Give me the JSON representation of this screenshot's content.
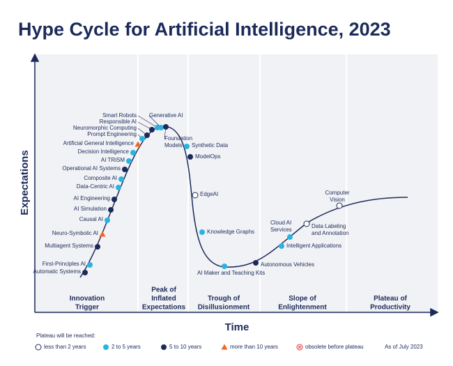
{
  "title": "Hype Cycle for Artificial Intelligence, 2023",
  "y_axis": "Expectations",
  "x_axis": "Time",
  "phases": [
    {
      "lines": [
        "Innovation",
        "Trigger"
      ]
    },
    {
      "lines": [
        "Peak of",
        "Inflated",
        "Expectations"
      ]
    },
    {
      "lines": [
        "Trough of",
        "Disillusionment"
      ]
    },
    {
      "lines": [
        "Slope of",
        "Enlightenment"
      ]
    },
    {
      "lines": [
        "Plateau of",
        "Productivity"
      ]
    }
  ],
  "legend_title": "Plateau will be reached:",
  "legend": [
    {
      "label": "less than 2 years",
      "items": [
        {
          "label": [
            "EdgeAI"
          ]
        },
        {
          "label": [
            "Data Labeling",
            "and Annotation"
          ]
        },
        {
          "label": [
            "Computer",
            "Vision"
          ]
        }
      ]
    },
    {
      "label": "2 to 5 years",
      "items": [
        {
          "label": [
            "First-Principles AI"
          ]
        },
        {
          "label": [
            "Causal AI"
          ]
        },
        {
          "label": [
            "Data-Centric AI"
          ]
        },
        {
          "label": [
            "Composite AI"
          ]
        },
        {
          "label": [
            "AI TRiSM"
          ]
        },
        {
          "label": [
            "Decision Intelligence"
          ]
        },
        {
          "label": [
            "Prompt Engineering"
          ]
        },
        {
          "label": [
            "Smart Robots"
          ]
        },
        {
          "label": [
            "Generative AI"
          ]
        },
        {
          "label": [
            "Synthetic Data"
          ]
        },
        {
          "label": [
            "Knowledge Graphs"
          ]
        },
        {
          "label": [
            "AI Maker and Teaching Kits"
          ]
        },
        {
          "label": [
            "Intelligent Applications"
          ]
        },
        {
          "label": [
            "Cloud AI",
            "Services"
          ]
        }
      ]
    },
    {
      "label": "5 to 10 years",
      "items": [
        {
          "label": [
            "Automatic Systems"
          ]
        },
        {
          "label": [
            "Multiagent Systems"
          ]
        },
        {
          "label": [
            "AI Simulation"
          ]
        },
        {
          "label": [
            "AI Engineering"
          ]
        },
        {
          "label": [
            "Operational AI Systems"
          ]
        },
        {
          "label": [
            "Neuromorphic Computing"
          ]
        },
        {
          "label": [
            "Responsible AI"
          ]
        },
        {
          "label": [
            "Foundation",
            "Models"
          ]
        },
        {
          "label": [
            "ModelOps"
          ]
        },
        {
          "label": [
            "Autonomous Vehicles"
          ]
        }
      ]
    },
    {
      "label": "more than 10 years",
      "items": [
        {
          "label": [
            "Neuro-Symbolic AI"
          ]
        },
        {
          "label": [
            "Artificial General Intelligence"
          ]
        }
      ]
    },
    {
      "label": "obsolete before plateau",
      "items": []
    }
  ],
  "note": "As of July 2023"
}
